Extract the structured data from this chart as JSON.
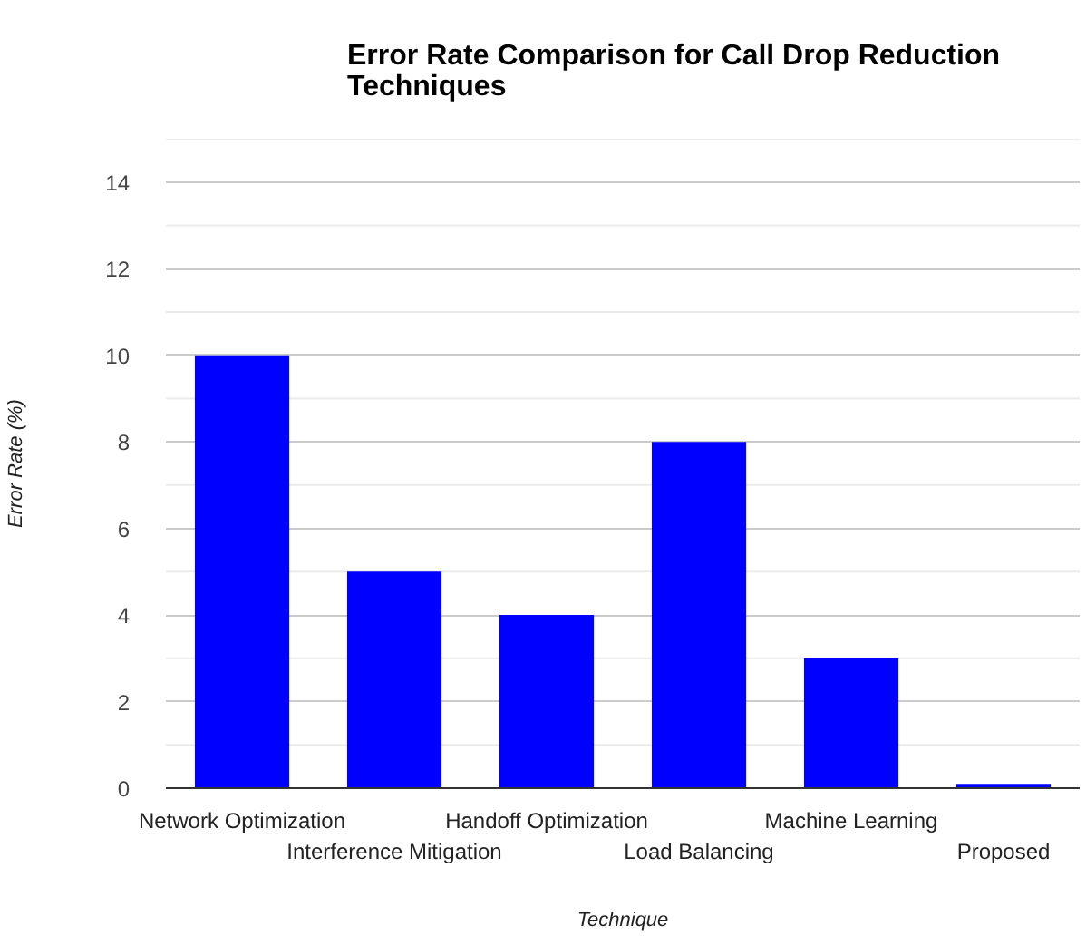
{
  "chart_data": {
    "type": "bar",
    "title": "Error Rate Comparison for Call Drop Reduction Techniques",
    "xlabel": "Technique",
    "ylabel": "Error Rate (%)",
    "categories": [
      "Network Optimization",
      "Interference Mitigation",
      "Handoff Optimization",
      "Load Balancing",
      "Machine Learning",
      "Proposed"
    ],
    "values": [
      10,
      5,
      4,
      8,
      3,
      0.1
    ],
    "color": "#0000ff",
    "ylim": [
      0,
      15
    ],
    "yticks": [
      0,
      {
        "value": 1,
        "label": null
      },
      2,
      {
        "value": 3,
        "label": null
      },
      4,
      {
        "value": 5,
        "label": null
      },
      6,
      {
        "value": 7,
        "label": null
      },
      8,
      {
        "value": 9,
        "label": null
      },
      10,
      {
        "value": 11,
        "label": null
      },
      12,
      {
        "value": 13,
        "label": null
      },
      14,
      {
        "value": 15,
        "label": null
      }
    ],
    "grid": "y"
  }
}
